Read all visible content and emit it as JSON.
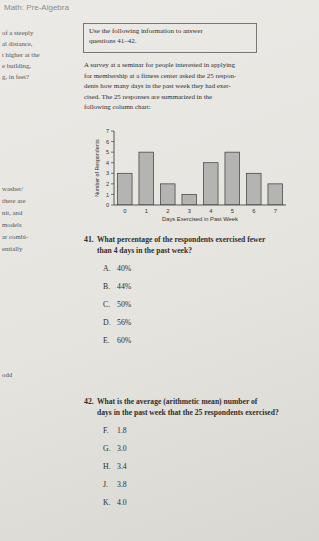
{
  "header": {
    "subject": "Math: Pre-Algebra"
  },
  "left_column": [
    "of a steeply",
    "al distance,",
    "t higher at the",
    "e building,",
    "g, in feet?",
    "washer/",
    "there are",
    "nit, and",
    "models",
    "ar combi-",
    "entially",
    "odd"
  ],
  "intro": {
    "box": [
      "Use the following information to answer",
      "questions 41–42."
    ],
    "paragraph": [
      "A survey at a seminar for people interested in applying",
      "for membership at a fitness center asked the 25 respon-",
      "dents how many days in the past week they had exer-",
      "cised. The 25 responses are summarized in the",
      "following column chart:"
    ]
  },
  "chart_data": {
    "type": "bar",
    "x_label": "Days Exercised in Past Week",
    "y_label": "Number of Respondents",
    "categories": [
      "0",
      "1",
      "2",
      "3",
      "4",
      "5",
      "6",
      "7"
    ],
    "values": [
      3,
      5,
      2,
      1,
      4,
      5,
      3,
      2
    ],
    "color": "#b4b4b2",
    "ylim": [
      0,
      7
    ],
    "yticks": [
      0,
      1,
      2,
      3,
      4,
      5,
      6,
      7
    ],
    "grid": false
  },
  "questions": [
    {
      "number": "41.",
      "lines": [
        "What percentage of the respondents exercised fewer",
        "than 4 days in the past week?"
      ],
      "options": [
        {
          "letter": "A.",
          "text": "40%"
        },
        {
          "letter": "B.",
          "text": "44%"
        },
        {
          "letter": "C.",
          "text": "50%"
        },
        {
          "letter": "D.",
          "text": "56%"
        },
        {
          "letter": "E.",
          "text": "60%"
        }
      ]
    },
    {
      "number": "42.",
      "lines": [
        "What is the average (arithmetic mean) number of",
        "days in the past week that the 25 respondents exercised?"
      ],
      "options": [
        {
          "letter": "F.",
          "text": "1.8"
        },
        {
          "letter": "G.",
          "text": "3.0"
        },
        {
          "letter": "H.",
          "text": "3.4"
        },
        {
          "letter": "J.",
          "text": "3.8"
        },
        {
          "letter": "K.",
          "text": "4.0"
        }
      ]
    }
  ]
}
